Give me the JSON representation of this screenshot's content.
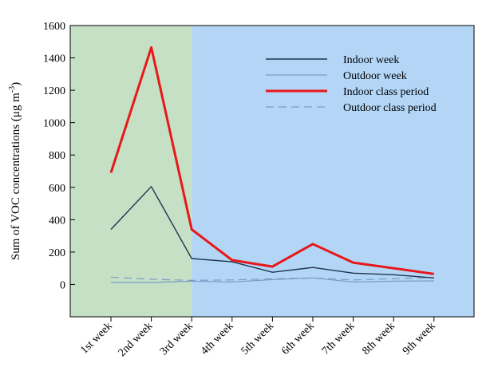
{
  "chart_data": {
    "type": "line",
    "categories": [
      "1st week",
      "2nd week",
      "3rd week",
      "4th week",
      "5th week",
      "6th week",
      "7th week",
      "8th week",
      "9th week"
    ],
    "ylabel": "Sum of VOC concentrations (μg m-3)",
    "ylabel_parts": {
      "main": "Sum of VOC concentrations (μg m",
      "sup": "-3",
      "close": ")"
    },
    "ylim": [
      -200,
      1600
    ],
    "yticks": [
      0,
      200,
      400,
      600,
      800,
      1000,
      1200,
      1400,
      1600
    ],
    "grid": false,
    "legend_position": "top-right",
    "background_regions": [
      {
        "from_category": 0,
        "to_category": 2,
        "color": "#c5e0c5"
      },
      {
        "from_category": 2,
        "to_category": 8,
        "color": "#b3d6f7"
      }
    ],
    "series": [
      {
        "name": "Indoor week",
        "values": [
          340,
          605,
          160,
          140,
          75,
          105,
          70,
          60,
          40
        ],
        "color": "#1f3550",
        "width": 1.4,
        "dash": ""
      },
      {
        "name": "Outdoor week",
        "values": [
          12,
          12,
          20,
          15,
          30,
          40,
          15,
          20,
          22
        ],
        "color": "#7a9dc4",
        "width": 1.2,
        "dash": ""
      },
      {
        "name": "Indoor class period",
        "values": [
          690,
          1465,
          340,
          150,
          110,
          250,
          135,
          100,
          65
        ],
        "color": "#e81818",
        "width": 3,
        "dash": ""
      },
      {
        "name": "Outdoor class period",
        "values": [
          45,
          32,
          25,
          28,
          35,
          40,
          28,
          35,
          42
        ],
        "color": "#7a9dc4",
        "width": 1.2,
        "dash": "10,6"
      }
    ]
  }
}
